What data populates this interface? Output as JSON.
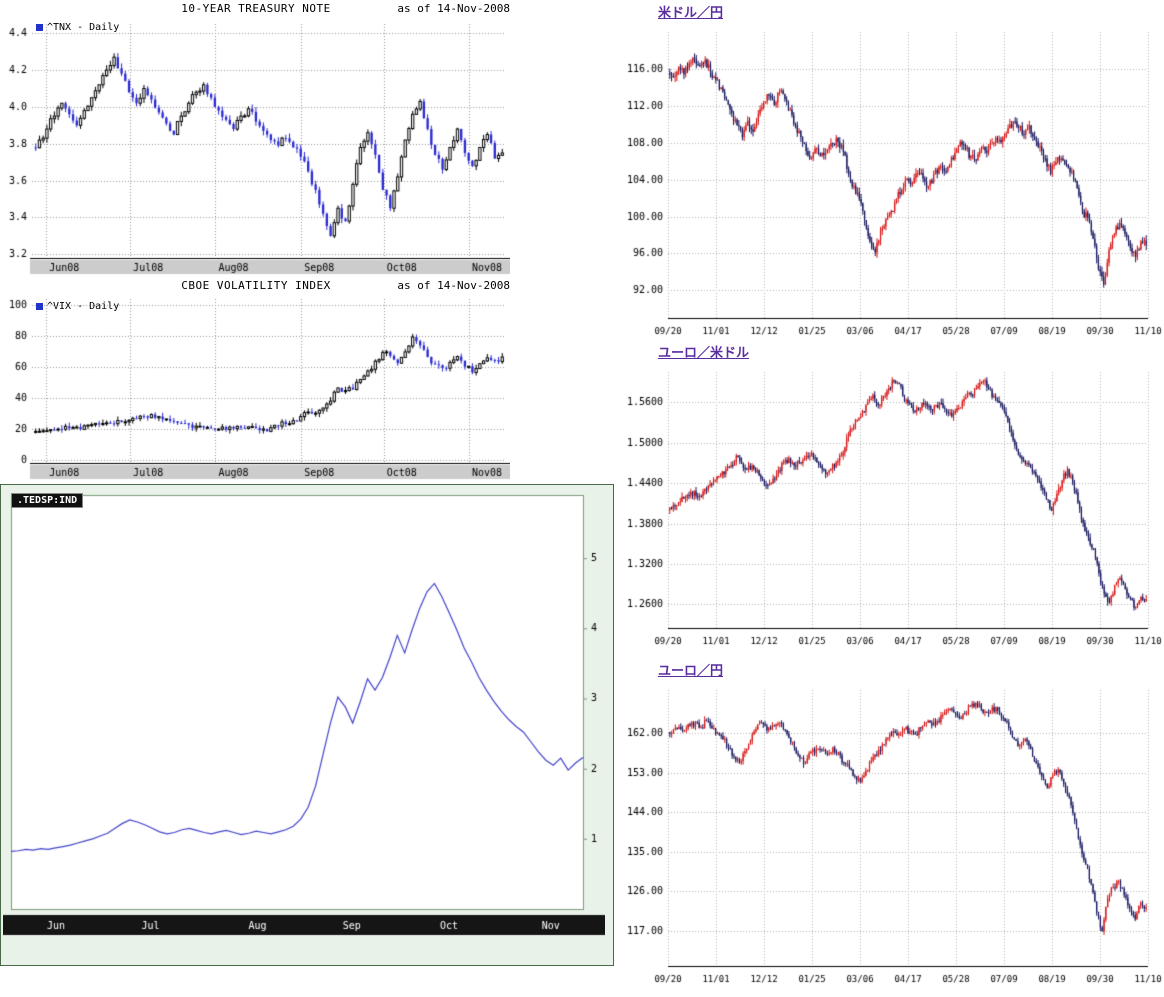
{
  "chart_data": [
    {
      "id": "tnx",
      "type": "candlestick",
      "title": "10-YEAR TREASURY NOTE",
      "as_of": "as of 14-Nov-2008",
      "legend": "^TNX - Daily",
      "grid": true,
      "y_side": "left",
      "legend_position": "top-left",
      "x_tick_labels": [
        "Jun08",
        "Jul08",
        "Aug08",
        "Sep08",
        "Oct08",
        "Nov08"
      ],
      "x_tick_pos": [
        0.03,
        0.207,
        0.387,
        0.568,
        0.742,
        0.922
      ],
      "y_tick_vals": [
        4.4,
        4.2,
        4.0,
        3.8,
        3.6,
        3.4,
        3.2
      ],
      "y_tick_labels": [
        "4.4",
        "4.2",
        "4.0",
        "3.8",
        "3.6",
        "3.4",
        "3.2"
      ],
      "ylim": [
        3.18,
        4.45
      ],
      "seed": 7,
      "upsample": 2,
      "noise": 0.022,
      "colors": {
        "up_fill": "#ffffff",
        "up_stroke": "#000000",
        "down": "#2a2ad2",
        "grid": "#999999",
        "axis": "#000000",
        "strip_bg": "#cccccc",
        "strip_text": "#000000"
      },
      "values": [
        3.78,
        3.82,
        3.88,
        3.95,
        4.02,
        3.96,
        3.9,
        3.98,
        4.05,
        4.12,
        4.2,
        4.27,
        4.18,
        4.08,
        4.02,
        4.1,
        4.04,
        3.97,
        3.91,
        3.85,
        3.95,
        4.02,
        4.08,
        4.12,
        4.05,
        3.98,
        3.93,
        3.88,
        3.95,
        3.99,
        3.92,
        3.87,
        3.82,
        3.79,
        3.83,
        3.78,
        3.73,
        3.65,
        3.55,
        3.42,
        3.3,
        3.45,
        3.38,
        3.58,
        3.78,
        3.86,
        3.74,
        3.55,
        3.45,
        3.62,
        3.82,
        3.96,
        4.03,
        3.88,
        3.74,
        3.66,
        3.78,
        3.88,
        3.75,
        3.68,
        3.78,
        3.85,
        3.72,
        3.75
      ]
    },
    {
      "id": "vix",
      "type": "candlestick",
      "title": "CBOE VOLATILITY INDEX",
      "as_of": "as of 14-Nov-2008",
      "legend": "^VIX - Daily",
      "grid": true,
      "y_side": "left",
      "legend_position": "top-left",
      "x_tick_labels": [
        "Jun08",
        "Jul08",
        "Aug08",
        "Sep08",
        "Oct08",
        "Nov08"
      ],
      "x_tick_pos": [
        0.03,
        0.207,
        0.387,
        0.568,
        0.742,
        0.922
      ],
      "y_tick_vals": [
        100,
        80,
        60,
        40,
        20,
        0
      ],
      "y_tick_labels": [
        "100",
        "80",
        "60",
        "40",
        "20",
        "0"
      ],
      "ylim": [
        -2,
        104
      ],
      "seed": 11,
      "upsample": 2,
      "noise": 2.2,
      "colors": {
        "up_fill": "#ffffff",
        "up_stroke": "#000000",
        "down": "#2a2ad2",
        "grid": "#999999",
        "axis": "#000000",
        "strip_bg": "#cccccc",
        "strip_text": "#000000"
      },
      "values": [
        18.2,
        18.5,
        18.9,
        19.3,
        19.8,
        20.5,
        21.2,
        22.0,
        22.8,
        23.5,
        24.0,
        23.4,
        24.5,
        25.5,
        26.8,
        28.2,
        29.3,
        28.0,
        26.5,
        25.0,
        23.8,
        22.8,
        21.8,
        21.0,
        20.4,
        19.9,
        19.6,
        20.2,
        20.8,
        21.4,
        20.6,
        20.0,
        20.8,
        21.8,
        23.2,
        25.4,
        28.0,
        31.0,
        30.2,
        33.5,
        38.0,
        46.5,
        44.8,
        45.5,
        52.0,
        57.5,
        63.8,
        69.5,
        67.2,
        62.5,
        69.8,
        79.4,
        74.0,
        66.5,
        61.8,
        59.5,
        63.0,
        66.8,
        60.2,
        56.5,
        62.2,
        66.0,
        64.5,
        66.5
      ]
    },
    {
      "id": "tedsp",
      "type": "line",
      "legend": ".TEDSP:IND",
      "grid": false,
      "y_side": "right",
      "legend_position": "top-left",
      "x_tick_labels": [
        "Jun",
        "Jul",
        "Aug",
        "Sep",
        "Oct",
        "Nov"
      ],
      "x_tick_pos": [
        0.063,
        0.228,
        0.415,
        0.58,
        0.75,
        0.928
      ],
      "y_tick_vals": [
        5,
        4,
        3,
        2,
        1
      ],
      "y_tick_labels": [
        "5",
        "4",
        "3",
        "2",
        "1"
      ],
      "ylim": [
        0,
        5.9
      ],
      "seed": 3,
      "colors": {
        "line": "#4444cc",
        "grid": "#999999",
        "axis": "#7a9a7a",
        "bar_bg": "#151515",
        "bar_text": "#ffffff",
        "panel_bg": "#e9f2e9",
        "plot_bg": "#ffffff"
      },
      "values": [
        0.82,
        0.83,
        0.85,
        0.84,
        0.86,
        0.85,
        0.87,
        0.89,
        0.91,
        0.94,
        0.97,
        1.0,
        1.04,
        1.08,
        1.15,
        1.22,
        1.27,
        1.24,
        1.2,
        1.15,
        1.1,
        1.07,
        1.09,
        1.13,
        1.15,
        1.12,
        1.09,
        1.07,
        1.1,
        1.12,
        1.09,
        1.06,
        1.08,
        1.11,
        1.09,
        1.07,
        1.1,
        1.13,
        1.18,
        1.28,
        1.45,
        1.75,
        2.2,
        2.65,
        3.02,
        2.88,
        2.65,
        2.95,
        3.28,
        3.12,
        3.3,
        3.58,
        3.9,
        3.65,
        3.98,
        4.28,
        4.52,
        4.64,
        4.45,
        4.22,
        3.98,
        3.72,
        3.52,
        3.3,
        3.12,
        2.96,
        2.82,
        2.7,
        2.6,
        2.52,
        2.38,
        2.24,
        2.12,
        2.05,
        2.15,
        1.98,
        2.08,
        2.16
      ]
    },
    {
      "id": "usdjpy",
      "type": "candlestick",
      "title": "米ドル／円",
      "grid": true,
      "y_side": "left",
      "x_tick_labels": [
        "09/20",
        "11/01",
        "12/12",
        "01/25",
        "03/06",
        "04/17",
        "05/28",
        "07/09",
        "08/19",
        "09/30",
        "11/10"
      ],
      "x_tick_pos": [
        0,
        0.1,
        0.2,
        0.3,
        0.4,
        0.5,
        0.6,
        0.7,
        0.8,
        0.9,
        1.0
      ],
      "y_tick_vals": [
        116,
        112,
        108,
        104,
        100,
        96,
        92
      ],
      "y_tick_labels": [
        "116.00",
        "112.00",
        "108.00",
        "104.00",
        "100.00",
        "96.00",
        "92.00"
      ],
      "ylim": [
        89,
        120
      ],
      "seed": 21,
      "upsample": 3,
      "noise": 0.5,
      "colors": {
        "up": "#d71313",
        "down": "#14145e",
        "grid": "#b5b5b5",
        "axis": "#000000"
      },
      "values": [
        115.6,
        115.1,
        116.2,
        115.4,
        116.6,
        117.1,
        116.3,
        117.0,
        115.6,
        114.8,
        114.0,
        112.6,
        111.2,
        109.9,
        108.6,
        110.4,
        109.2,
        111.1,
        112.3,
        113.1,
        112.1,
        113.5,
        112.7,
        111.6,
        109.9,
        108.6,
        107.1,
        106.3,
        107.4,
        106.9,
        107.3,
        107.9,
        108.1,
        107.0,
        104.6,
        103.3,
        101.9,
        99.6,
        97.3,
        96.1,
        98.4,
        99.7,
        100.6,
        101.9,
        102.9,
        104.1,
        103.6,
        104.7,
        104.1,
        103.3,
        104.6,
        105.4,
        104.9,
        105.6,
        106.9,
        108.1,
        107.3,
        106.6,
        106.1,
        107.4,
        106.9,
        107.9,
        108.3,
        108.6,
        109.6,
        110.3,
        109.6,
        108.9,
        109.9,
        108.3,
        107.6,
        106.3,
        104.6,
        105.9,
        106.3,
        105.6,
        104.9,
        103.1,
        100.6,
        99.9,
        97.6,
        94.3,
        92.6,
        96.4,
        98.1,
        99.3,
        98.1,
        96.6,
        95.6,
        97.3,
        96.9
      ]
    },
    {
      "id": "eurusd",
      "type": "candlestick",
      "title": "ユーロ／米ドル",
      "grid": true,
      "y_side": "left",
      "x_tick_labels": [
        "09/20",
        "11/01",
        "12/12",
        "01/25",
        "03/06",
        "04/17",
        "05/28",
        "07/09",
        "08/19",
        "09/30",
        "11/10"
      ],
      "x_tick_pos": [
        0,
        0.1,
        0.2,
        0.3,
        0.4,
        0.5,
        0.6,
        0.7,
        0.8,
        0.9,
        1.0
      ],
      "y_tick_vals": [
        1.56,
        1.5,
        1.44,
        1.38,
        1.32,
        1.26
      ],
      "y_tick_labels": [
        "1.5600",
        "1.5000",
        "1.4400",
        "1.3800",
        "1.3200",
        "1.2600"
      ],
      "ylim": [
        1.225,
        1.605
      ],
      "seed": 22,
      "upsample": 3,
      "noise": 0.0055,
      "colors": {
        "up": "#d71313",
        "down": "#14145e",
        "grid": "#b5b5b5",
        "axis": "#000000"
      },
      "values": [
        1.4,
        1.407,
        1.412,
        1.417,
        1.422,
        1.428,
        1.421,
        1.431,
        1.439,
        1.445,
        1.451,
        1.461,
        1.467,
        1.481,
        1.469,
        1.461,
        1.466,
        1.459,
        1.444,
        1.437,
        1.447,
        1.459,
        1.471,
        1.477,
        1.466,
        1.471,
        1.477,
        1.481,
        1.478,
        1.466,
        1.453,
        1.461,
        1.471,
        1.481,
        1.507,
        1.521,
        1.534,
        1.547,
        1.559,
        1.571,
        1.556,
        1.569,
        1.581,
        1.591,
        1.587,
        1.563,
        1.559,
        1.546,
        1.551,
        1.559,
        1.549,
        1.556,
        1.559,
        1.546,
        1.539,
        1.551,
        1.561,
        1.574,
        1.571,
        1.584,
        1.591,
        1.579,
        1.569,
        1.559,
        1.546,
        1.521,
        1.496,
        1.479,
        1.469,
        1.463,
        1.451,
        1.433,
        1.416,
        1.399,
        1.424,
        1.444,
        1.461,
        1.441,
        1.411,
        1.381,
        1.359,
        1.341,
        1.306,
        1.276,
        1.263,
        1.289,
        1.299,
        1.283,
        1.269,
        1.256,
        1.271,
        1.268
      ]
    },
    {
      "id": "eurjpy",
      "type": "candlestick",
      "title": "ユーロ／円",
      "grid": true,
      "y_side": "left",
      "x_tick_labels": [
        "09/20",
        "11/01",
        "12/12",
        "01/25",
        "03/06",
        "04/17",
        "05/28",
        "07/09",
        "08/19",
        "09/30",
        "11/10"
      ],
      "x_tick_pos": [
        0,
        0.1,
        0.2,
        0.3,
        0.4,
        0.5,
        0.6,
        0.7,
        0.8,
        0.9,
        1.0
      ],
      "y_tick_vals": [
        162,
        153,
        144,
        135,
        126,
        117
      ],
      "y_tick_labels": [
        "162.00",
        "153.00",
        "144.00",
        "135.00",
        "126.00",
        "117.00"
      ],
      "ylim": [
        109,
        171.8
      ],
      "seed": 23,
      "upsample": 3,
      "noise": 0.75,
      "colors": {
        "up": "#d71313",
        "down": "#14145e",
        "grid": "#b5b5b5",
        "axis": "#000000"
      },
      "values": [
        162.2,
        162.8,
        163.4,
        162.6,
        163.7,
        164.4,
        163.3,
        164.7,
        163.1,
        162.1,
        160.6,
        158.6,
        156.6,
        155.3,
        157.9,
        160.1,
        162.9,
        164.4,
        162.6,
        163.7,
        164.1,
        162.9,
        160.9,
        158.6,
        156.3,
        155.1,
        157.7,
        158.4,
        158.1,
        157.3,
        158.7,
        157.6,
        155.1,
        154.1,
        152.1,
        150.9,
        153.4,
        155.7,
        157.1,
        159.4,
        160.9,
        162.4,
        161.7,
        162.9,
        162.4,
        161.7,
        163.1,
        164.4,
        163.7,
        164.7,
        166.1,
        167.4,
        166.7,
        165.4,
        166.4,
        168.1,
        168.9,
        167.4,
        166.7,
        167.9,
        167.1,
        165.4,
        163.1,
        160.6,
        159.3,
        160.7,
        158.4,
        155.1,
        152.1,
        149.6,
        152.4,
        153.7,
        150.4,
        147.4,
        142.1,
        136.6,
        132.1,
        127.6,
        121.1,
        116.9,
        124.4,
        126.9,
        128.4,
        125.1,
        122.1,
        119.6,
        123.4,
        122.4
      ]
    }
  ]
}
